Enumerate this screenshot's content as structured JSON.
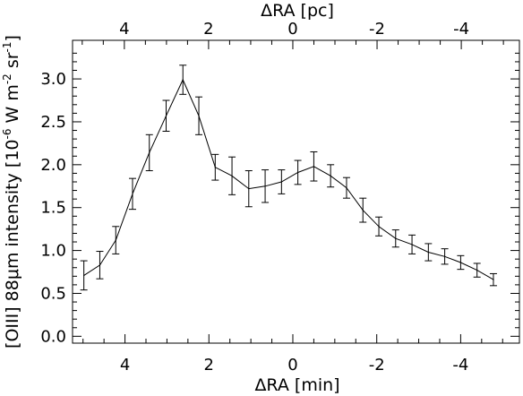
{
  "chart_data": {
    "type": "line",
    "title": "",
    "xlabel": "ΔRA [min]",
    "top_xlabel": "ΔRA [pc]",
    "ylabel_main": "[OIII] 88μm intensity [10",
    "ylabel_exp1": "-6",
    "ylabel_mid": " W m",
    "ylabel_exp2": "-2",
    "ylabel_tail": " sr",
    "ylabel_exp3": "-1",
    "ylabel_close": "]",
    "x_reversed": true,
    "xlim": [
      5.25,
      -5.4
    ],
    "ylim": [
      -0.08,
      3.45
    ],
    "top_xlim": [
      5.23,
      -5.38
    ],
    "grid": false,
    "x_ticks": [
      4,
      2,
      0,
      -2,
      -4
    ],
    "x_tick_labels": [
      "4",
      "2",
      "0",
      "-2",
      "-4"
    ],
    "top_x_ticks": [
      4,
      2,
      0,
      -2,
      -4
    ],
    "top_x_tick_labels": [
      "4",
      "2",
      "0",
      "-2",
      "-4"
    ],
    "y_ticks": [
      0.0,
      0.5,
      1.0,
      1.5,
      2.0,
      2.5,
      3.0
    ],
    "y_tick_labels": [
      "0.0",
      "0.5",
      "1.0",
      "1.5",
      "2.0",
      "2.5",
      "3.0"
    ],
    "series": [
      {
        "x": [
          4.98,
          4.6,
          4.22,
          3.82,
          3.42,
          3.02,
          2.62,
          2.24,
          1.85,
          1.45,
          1.05,
          0.66,
          0.27,
          -0.12,
          -0.5,
          -0.9,
          -1.28,
          -1.67,
          -2.05,
          -2.45,
          -2.84,
          -3.23,
          -3.62,
          -4.0,
          -4.39,
          -4.78
        ],
        "y": [
          0.71,
          0.83,
          1.12,
          1.66,
          2.14,
          2.57,
          2.99,
          2.57,
          1.97,
          1.87,
          1.72,
          1.75,
          1.8,
          1.91,
          1.98,
          1.87,
          1.73,
          1.47,
          1.28,
          1.14,
          1.07,
          0.98,
          0.93,
          0.86,
          0.77,
          0.66
        ],
        "err": [
          0.17,
          0.16,
          0.16,
          0.18,
          0.21,
          0.18,
          0.17,
          0.22,
          0.15,
          0.22,
          0.21,
          0.19,
          0.14,
          0.14,
          0.17,
          0.13,
          0.12,
          0.14,
          0.11,
          0.1,
          0.11,
          0.1,
          0.09,
          0.08,
          0.08,
          0.07
        ]
      }
    ]
  }
}
